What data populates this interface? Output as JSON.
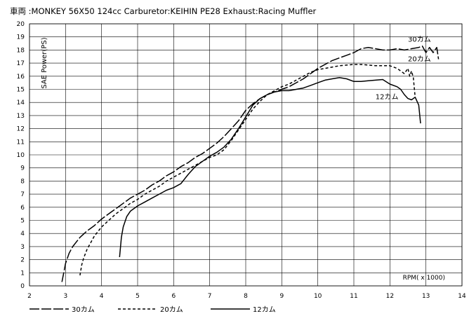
{
  "chart_data": {
    "type": "line",
    "title": "車両 :MONKEY 56X50 124cc Carburetor:KEIHIN PE28 Exhaust:Racing Muffler",
    "xlabel": "RPM( x 1000)",
    "ylabel": "SAE Power(PS)",
    "xlim": [
      2,
      14
    ],
    "ylim": [
      0,
      20
    ],
    "x_ticks": [
      2,
      3,
      4,
      5,
      6,
      7,
      8,
      9,
      10,
      11,
      12,
      13,
      14
    ],
    "y_ticks": [
      0,
      1,
      2,
      3,
      4,
      5,
      6,
      7,
      8,
      9,
      10,
      11,
      12,
      13,
      14,
      15,
      16,
      17,
      18,
      19,
      20
    ],
    "grid": true,
    "legend_position": "bottom",
    "series": [
      {
        "name": "30カム",
        "line_style": "long-dash",
        "x": [
          2.9,
          2.95,
          3.0,
          3.1,
          3.2,
          3.4,
          3.6,
          3.8,
          4.0,
          4.2,
          4.4,
          4.6,
          4.8,
          5.0,
          5.2,
          5.4,
          5.6,
          5.8,
          6.0,
          6.2,
          6.4,
          6.6,
          6.8,
          7.0,
          7.2,
          7.4,
          7.6,
          7.8,
          8.0,
          8.2,
          8.4,
          8.6,
          8.8,
          9.0,
          9.2,
          9.4,
          9.6,
          9.8,
          10.0,
          10.2,
          10.4,
          10.6,
          10.8,
          11.0,
          11.2,
          11.4,
          11.6,
          11.8,
          12.0,
          12.2,
          12.4,
          12.6,
          12.8,
          12.9,
          13.0,
          13.1,
          13.2,
          13.3,
          13.35
        ],
        "y": [
          0.3,
          1.0,
          1.7,
          2.5,
          3.0,
          3.7,
          4.2,
          4.6,
          5.1,
          5.5,
          5.9,
          6.3,
          6.7,
          7.0,
          7.3,
          7.7,
          8.0,
          8.4,
          8.7,
          9.1,
          9.4,
          9.8,
          10.1,
          10.5,
          10.9,
          11.4,
          12.0,
          12.6,
          13.4,
          13.9,
          14.3,
          14.6,
          14.8,
          15.0,
          15.2,
          15.5,
          15.8,
          16.2,
          16.6,
          16.9,
          17.2,
          17.4,
          17.6,
          17.8,
          18.1,
          18.2,
          18.1,
          18.0,
          18.0,
          18.1,
          18.0,
          18.1,
          18.2,
          18.3,
          17.8,
          18.2,
          17.8,
          18.2,
          17.3
        ]
      },
      {
        "name": "20カム",
        "line_style": "short-dash",
        "x": [
          3.4,
          3.45,
          3.5,
          3.6,
          3.8,
          4.0,
          4.2,
          4.4,
          4.6,
          4.8,
          5.0,
          5.2,
          5.4,
          5.6,
          5.8,
          6.0,
          6.2,
          6.4,
          6.6,
          6.8,
          7.0,
          7.2,
          7.4,
          7.6,
          7.8,
          8.0,
          8.2,
          8.4,
          8.6,
          8.8,
          9.0,
          9.2,
          9.4,
          9.6,
          9.8,
          10.0,
          10.2,
          10.4,
          10.6,
          10.8,
          11.0,
          11.2,
          11.4,
          11.6,
          11.8,
          12.0,
          12.2,
          12.3,
          12.4,
          12.5,
          12.55,
          12.6,
          12.65,
          12.7
        ],
        "y": [
          0.8,
          1.6,
          2.1,
          2.8,
          3.8,
          4.5,
          5.0,
          5.5,
          5.9,
          6.3,
          6.6,
          7.0,
          7.3,
          7.6,
          8.0,
          8.3,
          8.6,
          8.9,
          9.2,
          9.5,
          9.8,
          10.0,
          10.4,
          11.1,
          11.9,
          12.7,
          13.5,
          14.1,
          14.6,
          14.9,
          15.2,
          15.4,
          15.7,
          16.0,
          16.3,
          16.5,
          16.6,
          16.7,
          16.8,
          16.85,
          16.9,
          16.9,
          16.85,
          16.8,
          16.8,
          16.8,
          16.6,
          16.4,
          16.2,
          16.6,
          16.0,
          16.4,
          15.9,
          14.4
        ]
      },
      {
        "name": "12カム",
        "line_style": "solid",
        "x": [
          4.5,
          4.55,
          4.6,
          4.7,
          4.8,
          5.0,
          5.2,
          5.4,
          5.6,
          5.8,
          6.0,
          6.2,
          6.4,
          6.6,
          6.8,
          7.0,
          7.2,
          7.4,
          7.6,
          7.8,
          8.0,
          8.2,
          8.4,
          8.6,
          8.8,
          9.0,
          9.2,
          9.4,
          9.6,
          9.8,
          10.0,
          10.2,
          10.4,
          10.6,
          10.8,
          11.0,
          11.2,
          11.4,
          11.6,
          11.8,
          12.0,
          12.2,
          12.3,
          12.4,
          12.5,
          12.6,
          12.7,
          12.8,
          12.85
        ],
        "y": [
          2.2,
          3.7,
          4.5,
          5.3,
          5.7,
          6.1,
          6.4,
          6.7,
          7.0,
          7.3,
          7.5,
          7.8,
          8.5,
          9.1,
          9.5,
          9.9,
          10.2,
          10.6,
          11.2,
          12.0,
          12.9,
          13.8,
          14.3,
          14.6,
          14.8,
          14.9,
          14.9,
          15.0,
          15.1,
          15.3,
          15.5,
          15.7,
          15.8,
          15.9,
          15.8,
          15.6,
          15.6,
          15.65,
          15.7,
          15.75,
          15.4,
          15.2,
          15.0,
          14.6,
          14.3,
          14.2,
          14.4,
          13.8,
          12.4
        ]
      }
    ],
    "annotations": [
      {
        "text": "30カム",
        "x": 12.5,
        "y": 18.8
      },
      {
        "text": "20カム",
        "x": 12.5,
        "y": 17.3
      },
      {
        "text": "12カム",
        "x": 11.6,
        "y": 14.4
      }
    ]
  }
}
